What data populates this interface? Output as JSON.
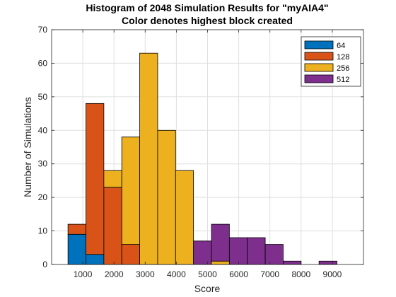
{
  "chart_data": {
    "type": "bar",
    "title": "Histogram of 2048 Simulation Results for \"myAIA4\"",
    "subtitle": "Color denotes highest block created",
    "xlabel": "Score",
    "ylabel": "Number of Simulations",
    "xlim": [
      0,
      10000
    ],
    "ylim": [
      0,
      70
    ],
    "xticks": [
      1000,
      2000,
      3000,
      4000,
      5000,
      6000,
      7000,
      8000,
      9000
    ],
    "yticks": [
      0,
      10,
      20,
      30,
      40,
      50,
      60,
      70
    ],
    "grid": true,
    "stacked": true,
    "legend_position": "top-right",
    "bin_width": 575,
    "bin_starts": [
      525,
      1100,
      1675,
      2250,
      2825,
      3400,
      3975,
      4550,
      5125,
      5700,
      6275,
      6850,
      7425,
      8000,
      8575,
      9150
    ],
    "series": [
      {
        "name": "64",
        "color": "#0072BD",
        "values": [
          9,
          3,
          0,
          0,
          0,
          0,
          0,
          0,
          0,
          0,
          0,
          0,
          0,
          0,
          0,
          0
        ]
      },
      {
        "name": "128",
        "color": "#D95319",
        "values": [
          3,
          45,
          23,
          6,
          0,
          0,
          0,
          0,
          0,
          0,
          0,
          0,
          0,
          0,
          0,
          0
        ]
      },
      {
        "name": "256",
        "color": "#EDB120",
        "values": [
          0,
          0,
          5,
          32,
          63,
          40,
          28,
          0,
          1,
          0,
          0,
          0,
          0,
          0,
          0,
          0
        ]
      },
      {
        "name": "512",
        "color": "#7E2F8E",
        "values": [
          0,
          0,
          0,
          0,
          0,
          0,
          0,
          7,
          11,
          8,
          8,
          6,
          1,
          0,
          1,
          0
        ]
      }
    ]
  }
}
